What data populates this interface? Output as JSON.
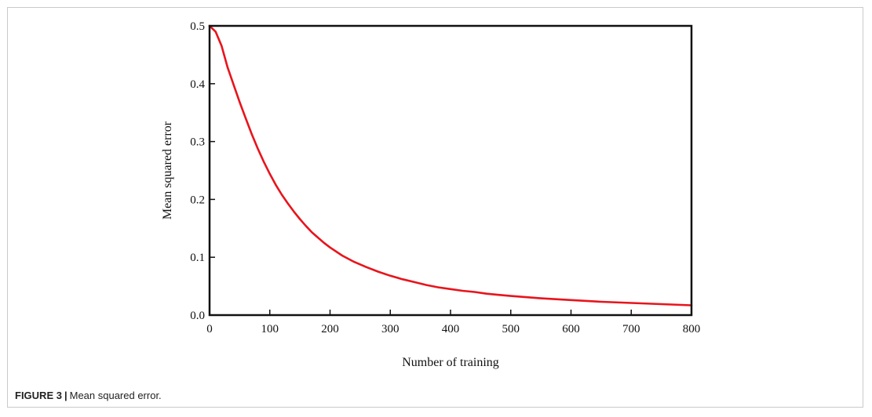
{
  "caption": {
    "label": "FIGURE 3",
    "separator": "|",
    "text": "Mean squared error."
  },
  "chart_data": {
    "type": "line",
    "title": "",
    "xlabel": "Number of training",
    "ylabel": "Mean squared error",
    "xlim": [
      0,
      800
    ],
    "ylim": [
      0.0,
      0.5
    ],
    "x_ticks": [
      0,
      100,
      200,
      300,
      400,
      500,
      600,
      700,
      800
    ],
    "x_tick_labels": [
      "0",
      "100",
      "200",
      "300",
      "400",
      "500",
      "600",
      "700",
      "800"
    ],
    "y_ticks": [
      0.0,
      0.1,
      0.2,
      0.3,
      0.4,
      0.5
    ],
    "y_tick_labels": [
      "0.0",
      "0.1",
      "0.2",
      "0.3",
      "0.4",
      "0.5"
    ],
    "grid": false,
    "legend": "none",
    "series": [
      {
        "color": "#e8141c",
        "x": [
          0,
          10,
          20,
          30,
          40,
          50,
          60,
          70,
          80,
          90,
          100,
          110,
          120,
          130,
          140,
          150,
          160,
          170,
          180,
          190,
          200,
          220,
          240,
          260,
          280,
          300,
          320,
          340,
          360,
          380,
          400,
          420,
          440,
          460,
          480,
          500,
          550,
          600,
          650,
          700,
          750,
          800
        ],
        "y": [
          0.5,
          0.49,
          0.465,
          0.428,
          0.398,
          0.368,
          0.34,
          0.313,
          0.288,
          0.265,
          0.244,
          0.225,
          0.208,
          0.193,
          0.179,
          0.166,
          0.154,
          0.143,
          0.134,
          0.125,
          0.117,
          0.103,
          0.092,
          0.083,
          0.075,
          0.068,
          0.062,
          0.057,
          0.052,
          0.048,
          0.045,
          0.042,
          0.04,
          0.037,
          0.035,
          0.033,
          0.029,
          0.026,
          0.023,
          0.021,
          0.019,
          0.017
        ]
      }
    ]
  }
}
